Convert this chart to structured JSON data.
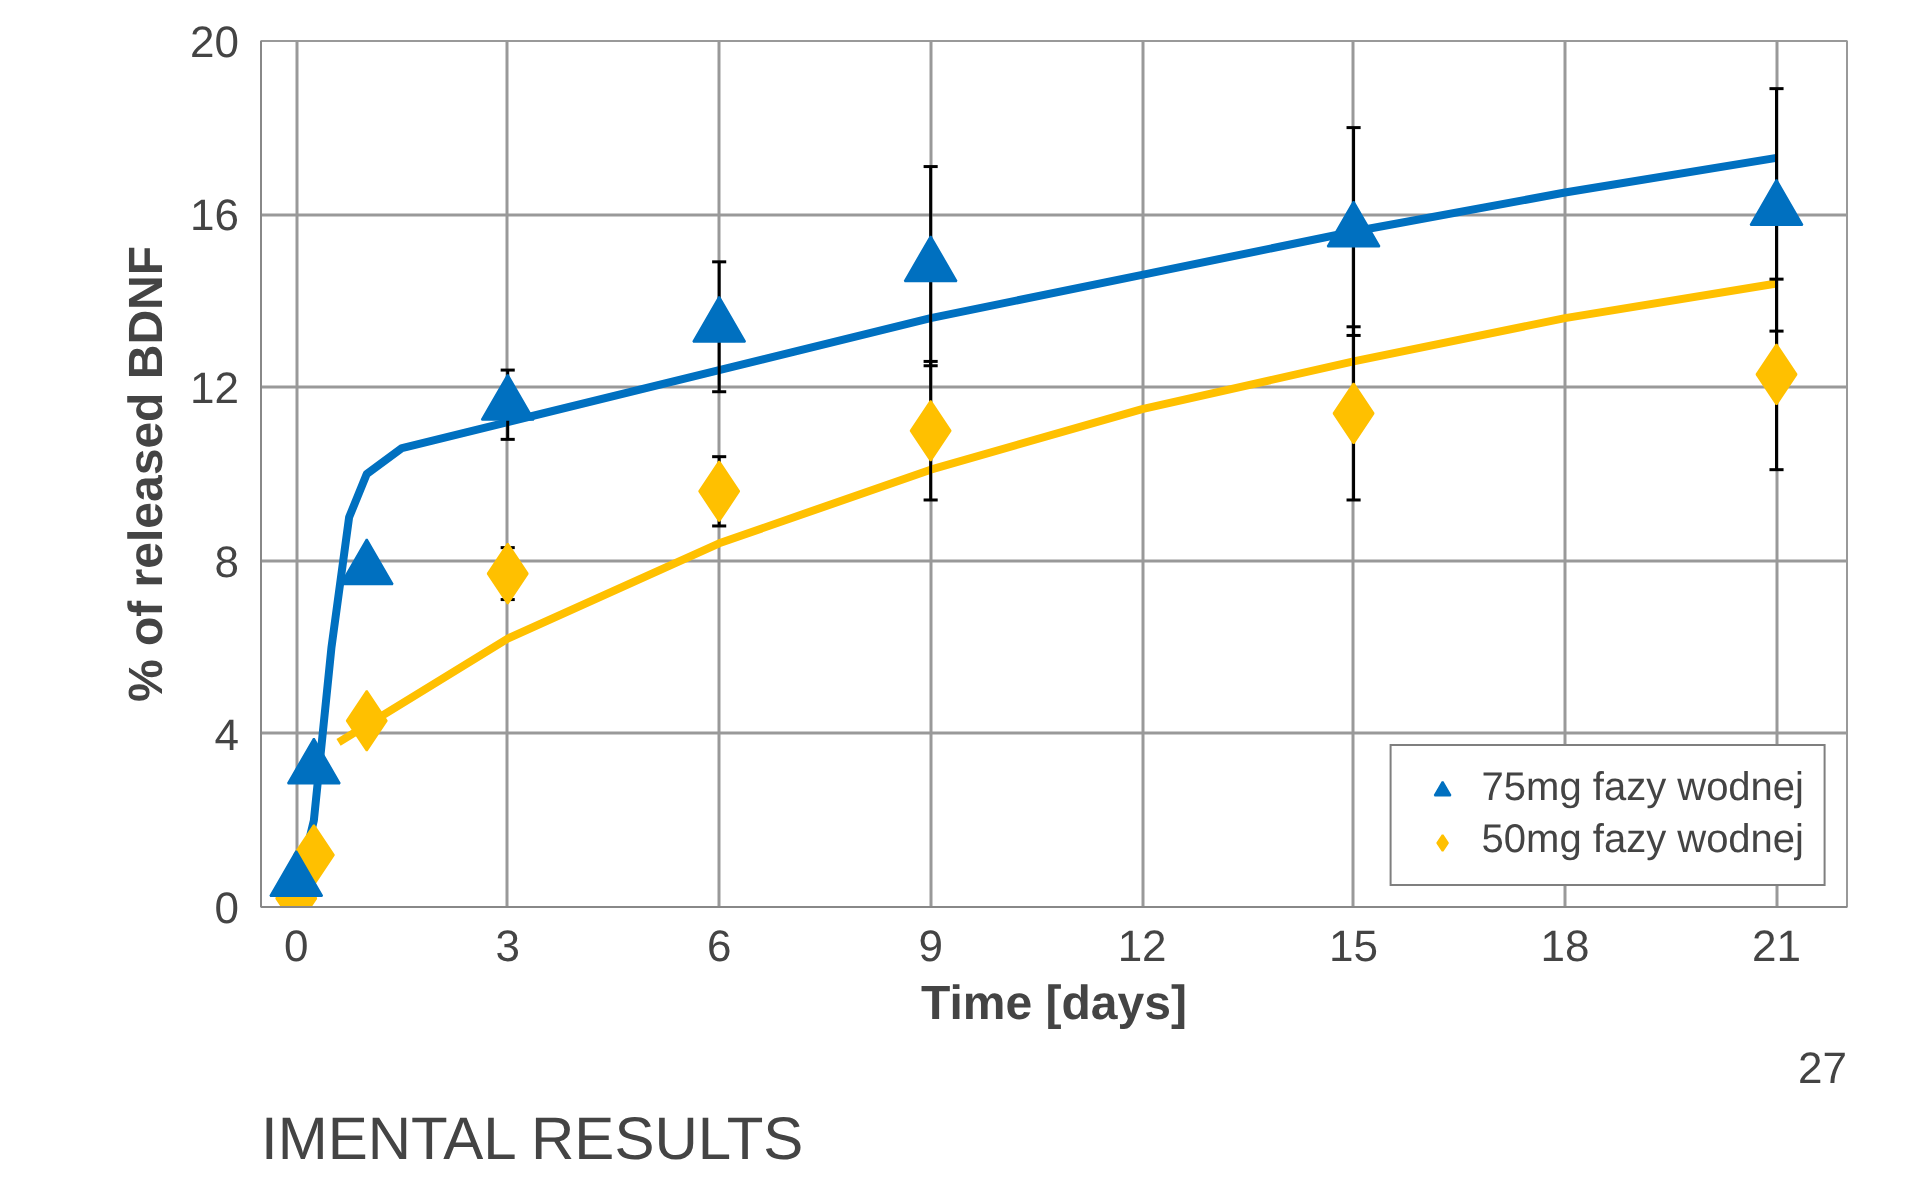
{
  "chart_data": {
    "type": "scatter",
    "xlabel": "Time [days]",
    "ylabel": "% of released BDNF",
    "xlim": [
      -0.5,
      22
    ],
    "ylim": [
      0,
      20
    ],
    "xticks": [
      0,
      3,
      6,
      9,
      12,
      15,
      18,
      21
    ],
    "yticks": [
      0,
      4,
      8,
      12,
      16,
      20
    ],
    "grid": true,
    "legend": "bottom right",
    "annotations": [
      "IMENTAL RESULTS",
      "27"
    ],
    "series": [
      {
        "name": "75mg fazy wodnej",
        "color": "#0070c0",
        "marker": "triangle",
        "x": [
          0,
          0.25,
          1,
          3,
          6,
          9,
          15,
          21
        ],
        "values": [
          0.6,
          3.2,
          7.8,
          11.6,
          13.4,
          14.8,
          15.6,
          16.1
        ],
        "errors": [
          null,
          null,
          null,
          0.8,
          1.5,
          2.3,
          2.4,
          2.8
        ]
      },
      {
        "name": "50mg fazy wodnej",
        "color": "#ffc000",
        "marker": "diamond",
        "x": [
          0,
          0.25,
          1,
          3,
          6,
          9,
          15,
          21
        ],
        "values": [
          0.2,
          1.2,
          4.3,
          7.7,
          9.6,
          11.0,
          11.4,
          12.3
        ],
        "errors": [
          null,
          null,
          null,
          0.6,
          0.8,
          1.6,
          2.0,
          2.2
        ]
      },
      {
        "type": "line",
        "color": "#0070c0",
        "x": [
          0,
          0.25,
          0.5,
          0.75,
          1,
          1.5,
          3,
          6,
          9,
          12,
          15,
          18,
          21
        ],
        "values": [
          0.3,
          2,
          6,
          9,
          10,
          10.6,
          11.2,
          12.4,
          13.6,
          14.6,
          15.6,
          16.5,
          17.3
        ]
      },
      {
        "type": "line",
        "color": "#ffc000",
        "x": [
          0.6,
          1,
          3,
          6,
          9,
          12,
          15,
          18,
          21
        ],
        "values": [
          3.8,
          4.2,
          6.2,
          8.4,
          10.1,
          11.5,
          12.6,
          13.6,
          14.4
        ]
      }
    ]
  }
}
